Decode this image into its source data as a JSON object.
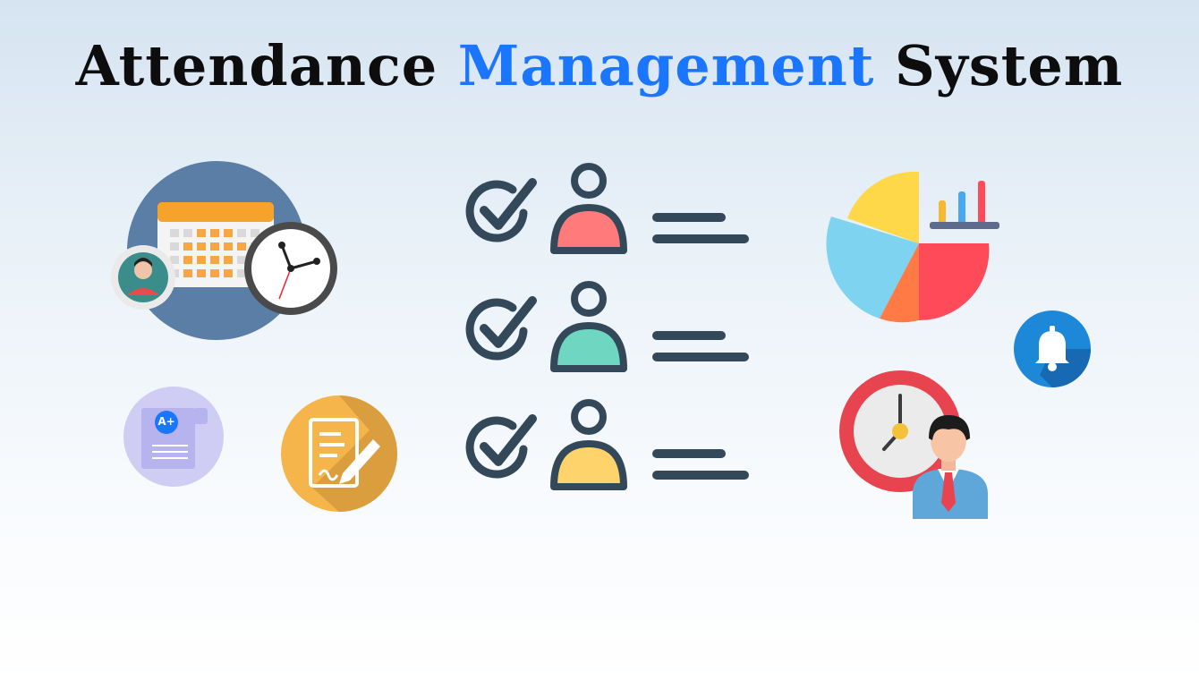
{
  "title": {
    "part1": "Attendance",
    "part2": "Management",
    "part3": "System"
  },
  "illustrations": {
    "calendar_clock": {
      "icon": "calendar-clock-icon"
    },
    "report_card": {
      "icon": "report-card-icon",
      "grade": "A+"
    },
    "signed_document": {
      "icon": "signed-document-icon"
    },
    "attendance_list": {
      "rows": [
        {
          "icon": "check-person-icon",
          "color": "#ff7b7b"
        },
        {
          "icon": "check-person-icon",
          "color": "#6fd6c2"
        },
        {
          "icon": "check-person-icon",
          "color": "#ffd36b"
        }
      ]
    },
    "analytics": {
      "icon": "pie-bar-chart-icon"
    },
    "notification": {
      "icon": "bell-icon",
      "color": "#1e88d8"
    },
    "employee_clock": {
      "icon": "employee-clock-icon"
    }
  },
  "colors": {
    "accent": "#1a75ff",
    "dark": "#33495a"
  }
}
